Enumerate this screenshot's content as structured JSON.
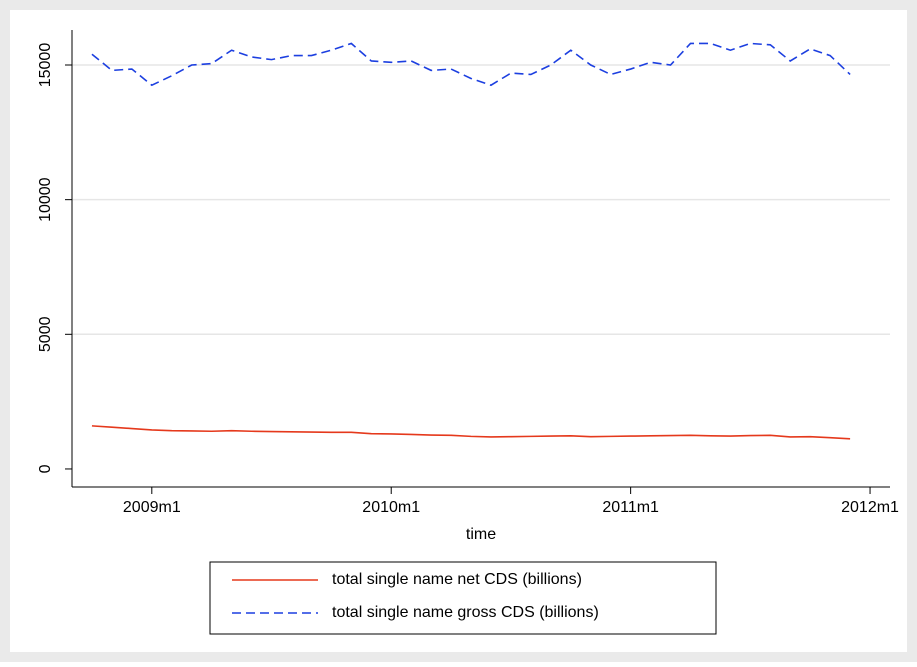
{
  "chart_data": {
    "type": "line",
    "x_label": "time",
    "x": [
      "2008m10",
      "2008m11",
      "2008m12",
      "2009m1",
      "2009m2",
      "2009m3",
      "2009m4",
      "2009m5",
      "2009m6",
      "2009m7",
      "2009m8",
      "2009m9",
      "2009m10",
      "2009m11",
      "2009m12",
      "2010m1",
      "2010m2",
      "2010m3",
      "2010m4",
      "2010m5",
      "2010m6",
      "2010m7",
      "2010m8",
      "2010m9",
      "2010m10",
      "2010m11",
      "2010m12",
      "2011m1",
      "2011m2",
      "2011m3",
      "2011m4",
      "2011m5",
      "2011m6",
      "2011m7",
      "2011m8",
      "2011m9",
      "2011m10",
      "2011m11",
      "2011m12"
    ],
    "series": [
      {
        "name": "total single name net CDS (billions)",
        "color": "#e5391c",
        "dash": false,
        "values": [
          1600,
          1550,
          1500,
          1450,
          1420,
          1410,
          1400,
          1420,
          1400,
          1390,
          1380,
          1370,
          1360,
          1360,
          1310,
          1300,
          1280,
          1260,
          1250,
          1210,
          1190,
          1200,
          1210,
          1220,
          1230,
          1200,
          1210,
          1220,
          1230,
          1240,
          1250,
          1230,
          1220,
          1240,
          1250,
          1190,
          1200,
          1160,
          1120
        ]
      },
      {
        "name": "total single name gross CDS (billions)",
        "color": "#1c3fe0",
        "dash": true,
        "values": [
          15400,
          14800,
          14850,
          14250,
          14600,
          15000,
          15050,
          15550,
          15300,
          15200,
          15350,
          15350,
          15550,
          15800,
          15150,
          15100,
          15150,
          14800,
          14850,
          14500,
          14250,
          14700,
          14650,
          15000,
          15550,
          15000,
          14650,
          14850,
          15100,
          15000,
          15800,
          15800,
          15550,
          15800,
          15750,
          15150,
          15600,
          15350,
          14650
        ]
      }
    ],
    "xlim": [
      "2008m9",
      "2012m2"
    ],
    "xticks": [
      "2009m1",
      "2010m1",
      "2011m1",
      "2012m1"
    ],
    "ylim": [
      -670,
      16300
    ],
    "yticks": [
      0,
      5000,
      10000,
      15000
    ],
    "grid": true,
    "legend": "bottom"
  }
}
